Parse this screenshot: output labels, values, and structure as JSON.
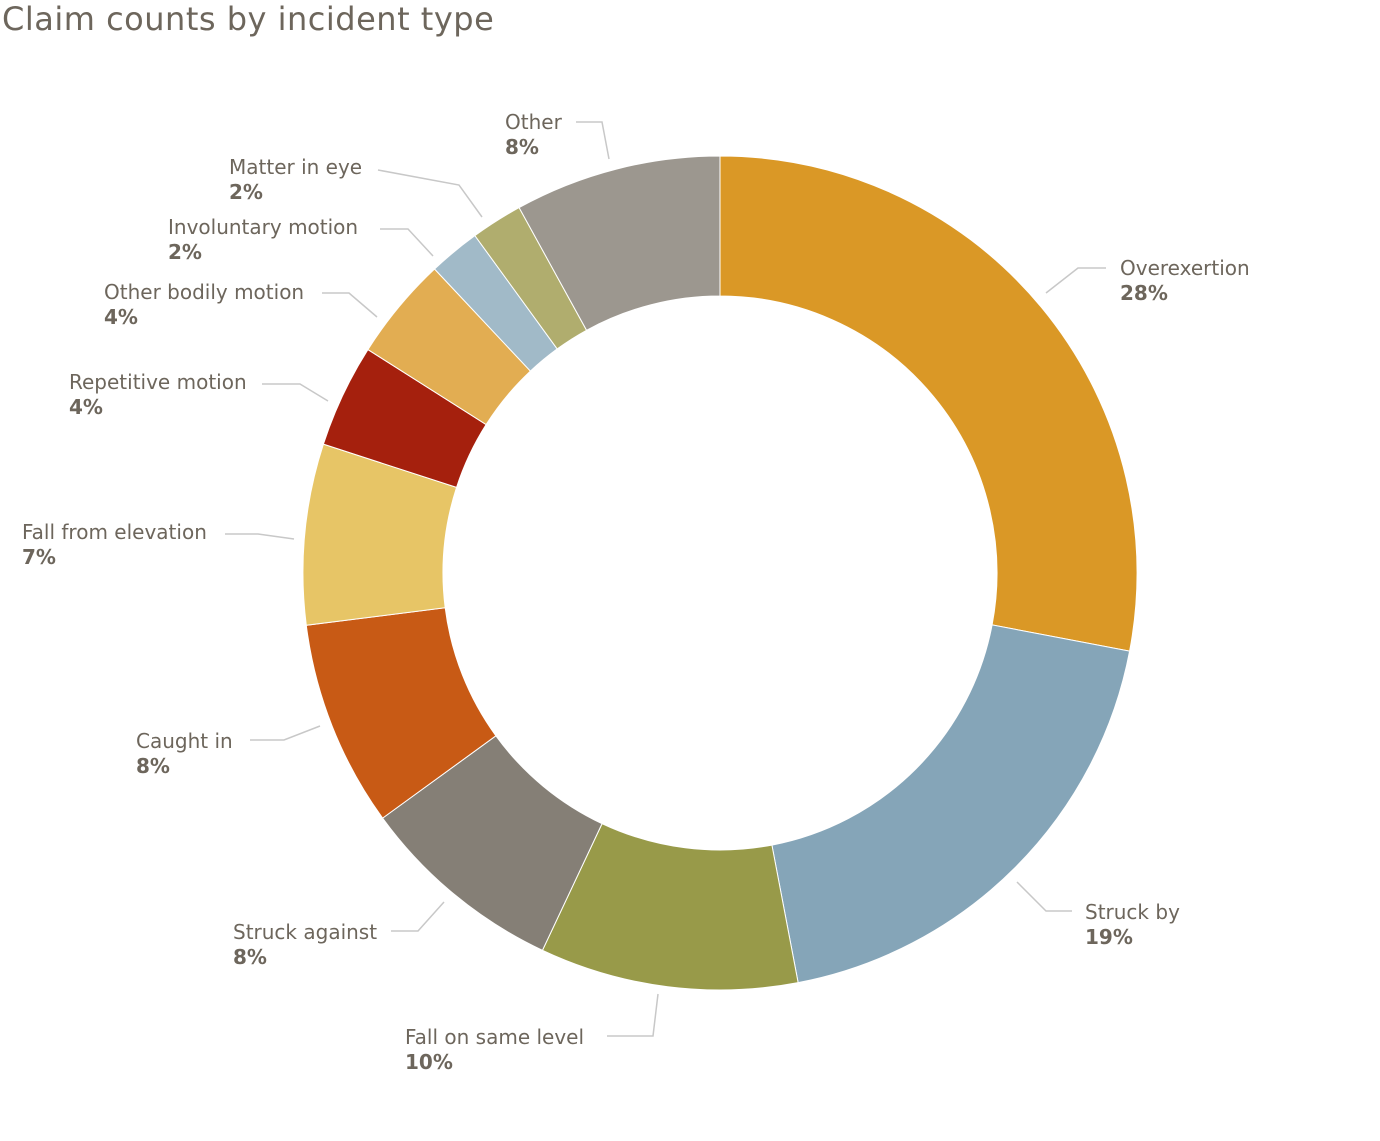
{
  "chart_data": {
    "type": "pie",
    "title": "Claim counts by incident type",
    "donut": true,
    "start_position": "12 o'clock, clockwise",
    "slices": [
      {
        "label": "Overexertion",
        "pct_label": "28%",
        "value": 28,
        "color": "#da9826"
      },
      {
        "label": "Struck by",
        "pct_label": "19%",
        "value": 19,
        "color": "#85a5b8"
      },
      {
        "label": "Fall on same level",
        "pct_label": "10%",
        "value": 10,
        "color": "#989a49"
      },
      {
        "label": "Struck against",
        "pct_label": "8%",
        "value": 8,
        "color": "#857f76"
      },
      {
        "label": "Caught in",
        "pct_label": "8%",
        "value": 8,
        "color": "#c85a15"
      },
      {
        "label": "Fall from elevation",
        "pct_label": "7%",
        "value": 7,
        "color": "#e7c566"
      },
      {
        "label": "Repetitive motion",
        "pct_label": "4%",
        "value": 4,
        "color": "#a5200d"
      },
      {
        "label": "Other bodily motion",
        "pct_label": "4%",
        "value": 4,
        "color": "#e2ad52"
      },
      {
        "label": "Involuntary motion",
        "pct_label": "2%",
        "value": 2,
        "color": "#a1bac8"
      },
      {
        "label": "Matter in eye",
        "pct_label": "2%",
        "value": 2,
        "color": "#b0ad6e"
      },
      {
        "label": "Other",
        "pct_label": "8%",
        "value": 8,
        "color": "#9c978f"
      }
    ]
  }
}
